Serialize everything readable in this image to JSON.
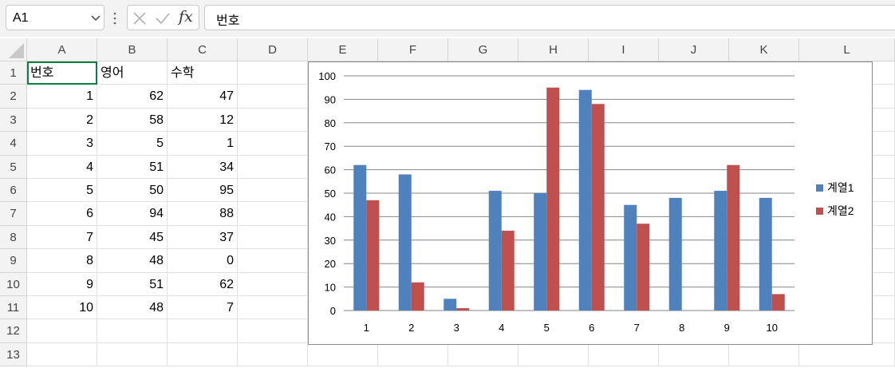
{
  "namebox": {
    "value": "A1"
  },
  "formula": {
    "value": "번호"
  },
  "fx_label": "fx",
  "columns": [
    "A",
    "B",
    "C",
    "D",
    "E",
    "F",
    "G",
    "H",
    "I",
    "J",
    "K",
    "L"
  ],
  "rows": [
    "1",
    "2",
    "3",
    "4",
    "5",
    "6",
    "7",
    "8",
    "9",
    "10",
    "11",
    "12",
    "13"
  ],
  "table": {
    "headers": [
      "번호",
      "영어",
      "수학"
    ],
    "rows": [
      [
        "1",
        "62",
        "47"
      ],
      [
        "2",
        "58",
        "12"
      ],
      [
        "3",
        "5",
        "1"
      ],
      [
        "4",
        "51",
        "34"
      ],
      [
        "5",
        "50",
        "95"
      ],
      [
        "6",
        "94",
        "88"
      ],
      [
        "7",
        "45",
        "37"
      ],
      [
        "8",
        "48",
        "0"
      ],
      [
        "9",
        "51",
        "62"
      ],
      [
        "10",
        "48",
        "7"
      ]
    ]
  },
  "colors": {
    "series1": "#4f81bd",
    "series2": "#c0504d",
    "select": "#107c41"
  },
  "chart_data": {
    "type": "bar",
    "categories": [
      "1",
      "2",
      "3",
      "4",
      "5",
      "6",
      "7",
      "8",
      "9",
      "10"
    ],
    "series": [
      {
        "name": "계열1",
        "values": [
          62,
          58,
          5,
          51,
          50,
          94,
          45,
          48,
          51,
          48
        ]
      },
      {
        "name": "계열2",
        "values": [
          47,
          12,
          1,
          34,
          95,
          88,
          37,
          0,
          62,
          7
        ]
      }
    ],
    "ylim": [
      0,
      100
    ],
    "yticks": [
      "0",
      "10",
      "20",
      "30",
      "40",
      "50",
      "60",
      "70",
      "80",
      "90",
      "100"
    ],
    "grid": true,
    "legend": "right"
  }
}
